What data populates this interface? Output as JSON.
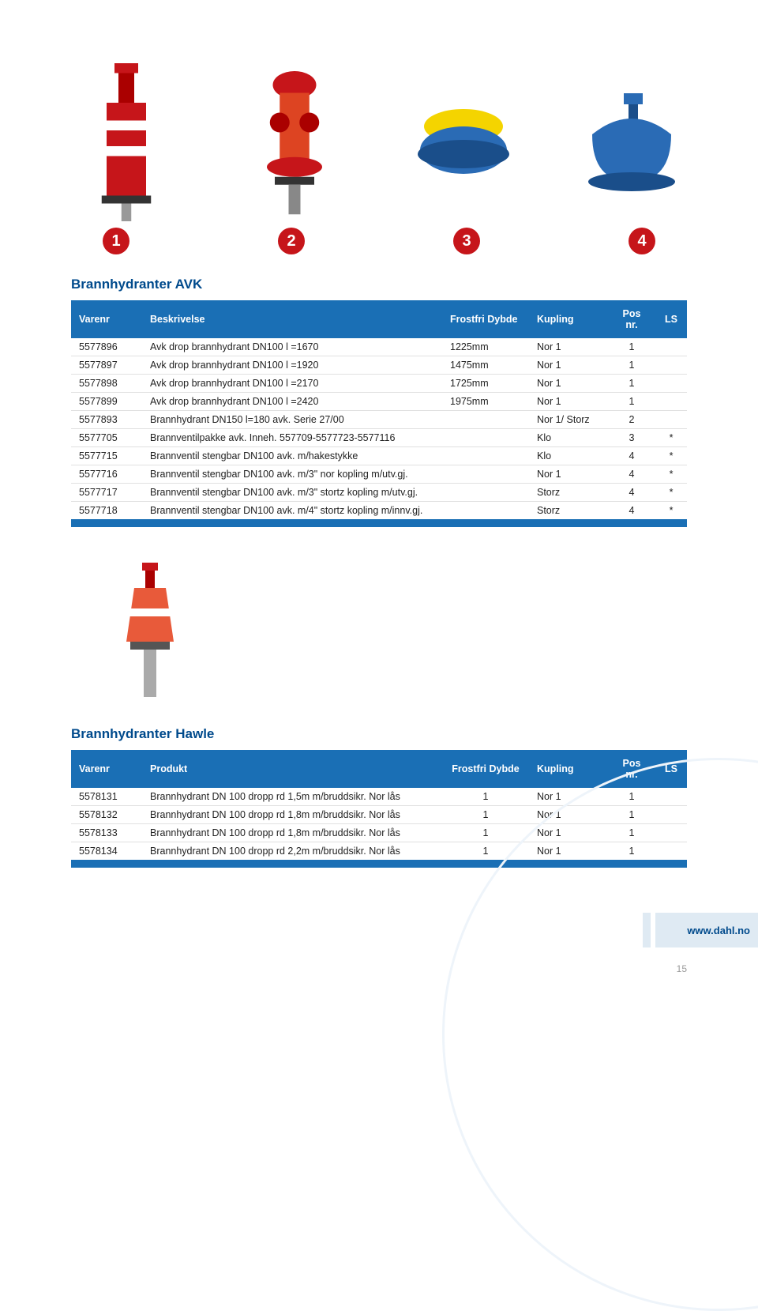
{
  "colors": {
    "brand_blue": "#1a6fb5",
    "title_blue": "#004a8c",
    "badge_red": "#c6151a",
    "row_border": "#e0e0e0",
    "footer_bar": "#dfeaf3",
    "page_num": "#999999",
    "background": "#ffffff"
  },
  "typography": {
    "base_fontsize": 12.5,
    "title_fontsize": 17,
    "badge_fontsize": 20,
    "footer_link_fontsize": 13
  },
  "images": {
    "badges": [
      "1",
      "2",
      "3",
      "4"
    ]
  },
  "table1": {
    "title": "Brannhydranter AVK",
    "columns": [
      "Varenr",
      "Beskrivelse",
      "Frostfri Dybde",
      "Kupling",
      "Pos nr.",
      "LS"
    ],
    "column_align": [
      "left",
      "left",
      "left",
      "left",
      "center",
      "center"
    ],
    "rows": [
      [
        "5577896",
        "Avk drop brannhydrant DN100 l =1670",
        "1225mm",
        "Nor 1",
        "1",
        ""
      ],
      [
        "5577897",
        "Avk drop brannhydrant DN100 l =1920",
        "1475mm",
        "Nor 1",
        "1",
        ""
      ],
      [
        "5577898",
        "Avk drop brannhydrant DN100 l =2170",
        "1725mm",
        "Nor 1",
        "1",
        ""
      ],
      [
        "5577899",
        "Avk drop brannhydrant DN100 l =2420",
        "1975mm",
        "Nor 1",
        "1",
        ""
      ],
      [
        "5577893",
        "Brannhydrant DN150 l=180 avk. Serie 27/00",
        "",
        "Nor 1/ Storz",
        "2",
        ""
      ],
      [
        "5577705",
        "Brannventilpakke avk. Inneh. 557709-5577723-5577116",
        "",
        "Klo",
        "3",
        "*"
      ],
      [
        "5577715",
        "Brannventil stengbar DN100 avk. m/hakestykke",
        "",
        "Klo",
        "4",
        "*"
      ],
      [
        "5577716",
        "Brannventil stengbar DN100 avk. m/3\" nor kopling m/utv.gj.",
        "",
        "Nor 1",
        "4",
        "*"
      ],
      [
        "5577717",
        "Brannventil stengbar DN100 avk. m/3\" stortz kopling m/utv.gj.",
        "",
        "Storz",
        "4",
        "*"
      ],
      [
        "5577718",
        "Brannventil stengbar DN100 avk. m/4\" stortz kopling m/innv.gj.",
        "",
        "Storz",
        "4",
        "*"
      ]
    ]
  },
  "table2": {
    "title": "Brannhydranter Hawle",
    "columns": [
      "Varenr",
      "Produkt",
      "Frostfri Dybde",
      "Kupling",
      "Pos nr.",
      "LS"
    ],
    "column_align": [
      "left",
      "left",
      "center",
      "left",
      "center",
      "center"
    ],
    "rows": [
      [
        "5578131",
        "Brannhydrant DN 100 dropp rd 1,5m m/bruddsikr. Nor lås",
        "1",
        "Nor 1",
        "1",
        ""
      ],
      [
        "5578132",
        "Brannhydrant DN 100 dropp rd 1,8m m/bruddsikr. Nor lås",
        "1",
        "Nor 1",
        "1",
        ""
      ],
      [
        "5578133",
        "Brannhydrant DN 100 dropp rd 1,8m m/bruddsikr. Nor lås",
        "1",
        "Nor 1",
        "1",
        ""
      ],
      [
        "5578134",
        "Brannhydrant DN 100 dropp rd 2,2m m/bruddsikr. Nor lås",
        "1",
        "Nor 1",
        "1",
        ""
      ]
    ]
  },
  "footer": {
    "link": "www.dahl.no",
    "page": "15"
  }
}
